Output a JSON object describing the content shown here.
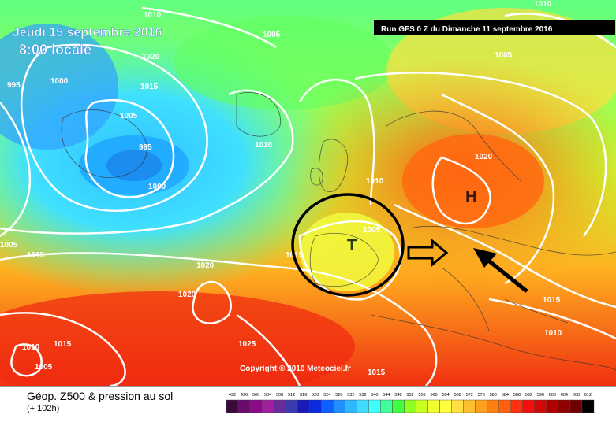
{
  "header": {
    "date_line": "Jeudi 15 septembre 2016",
    "time_line": "8:00 locale",
    "run_label": "Run GFS 0 Z du Dimanche 11 septembre 2016",
    "copyright": "Copyright © 2016 Meteociel.fr"
  },
  "footer": {
    "title": "Géop. Z500 & pression au sol",
    "subtitle": "(+ 102h)"
  },
  "isobar_labels": [
    "1010",
    "1005",
    "1020",
    "1015",
    "995",
    "1000",
    "1005",
    "995",
    "1000",
    "1010",
    "1005",
    "1010",
    "1020",
    "1005",
    "1015",
    "1015",
    "1020",
    "1020",
    "1005",
    "1015",
    "1025",
    "1015",
    "1010",
    "1010",
    "1010",
    "1015",
    "1005"
  ],
  "pressure_systems": [
    {
      "symbol": "H",
      "meaning": "high"
    },
    {
      "symbol": "T",
      "meaning": "low"
    }
  ],
  "scale": {
    "ticks": [
      "492",
      "496",
      "500",
      "504",
      "508",
      "512",
      "516",
      "520",
      "524",
      "528",
      "532",
      "536",
      "540",
      "544",
      "548",
      "552",
      "556",
      "560",
      "564",
      "568",
      "572",
      "576",
      "580",
      "584",
      "588",
      "592",
      "596",
      "600",
      "604",
      "608",
      "612"
    ],
    "colors": [
      "#3a0a3a",
      "#6b0a6b",
      "#8a0a8a",
      "#a020a0",
      "#6a2a9a",
      "#3b3bb0",
      "#1a1ab8",
      "#0a2bdc",
      "#1060ff",
      "#2090ff",
      "#30b8ff",
      "#40dcff",
      "#40ffff",
      "#40ff9a",
      "#40ff40",
      "#90ff20",
      "#c8ff20",
      "#f0ff30",
      "#ffff40",
      "#ffe040",
      "#ffc030",
      "#ffa020",
      "#ff8010",
      "#ff6010",
      "#ff3010",
      "#f01010",
      "#d00808",
      "#b00000",
      "#900000",
      "#700000",
      "#000000"
    ]
  },
  "annotations": {
    "circle": "low-pressure circle",
    "arrow_right": "hollow arrow",
    "arrow_diag": "black arrow"
  }
}
